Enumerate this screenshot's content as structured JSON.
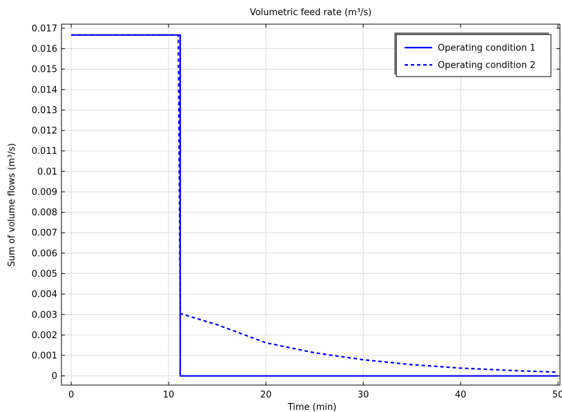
{
  "chart_data": {
    "type": "line",
    "title": "Volumetric feed rate (m³/s)",
    "xlabel": "Time (min)",
    "ylabel": "Sum of volume flows (m³/s)",
    "xlim": [
      -1,
      50.2
    ],
    "ylim": [
      -0.00045,
      0.0172
    ],
    "xticks": [
      0,
      10,
      20,
      30,
      40,
      50
    ],
    "xtick_labels": [
      "0",
      "10",
      "20",
      "30",
      "40",
      "50"
    ],
    "yticks": [
      0,
      0.001,
      0.002,
      0.003,
      0.004,
      0.005,
      0.006,
      0.007,
      0.008,
      0.009,
      0.01,
      0.011,
      0.012,
      0.013,
      0.014,
      0.015,
      0.016,
      0.017
    ],
    "ytick_labels": [
      "0",
      "0.001",
      "0.002",
      "0.003",
      "0.004",
      "0.005",
      "0.006",
      "0.007",
      "0.008",
      "0.009",
      "0.01",
      "0.011",
      "0.012",
      "0.013",
      "0.014",
      "0.015",
      "0.016",
      "0.017"
    ],
    "grid": true,
    "legend_position": "top-right",
    "series": [
      {
        "name": "Operating condition 1",
        "style": "solid",
        "color": "#0000ff",
        "x": [
          0,
          11.2,
          11.2,
          50
        ],
        "y": [
          0.01667,
          0.01667,
          0,
          0
        ]
      },
      {
        "name": "Operating condition 2",
        "style": "dashed",
        "color": "#0000ff",
        "x": [
          0,
          11.0,
          11.2,
          15,
          20,
          25,
          30,
          35,
          40,
          45,
          50
        ],
        "y": [
          0.01667,
          0.01667,
          0.00305,
          0.0025,
          0.00162,
          0.00113,
          0.00079,
          0.00055,
          0.00038,
          0.00027,
          0.00018
        ]
      }
    ]
  }
}
